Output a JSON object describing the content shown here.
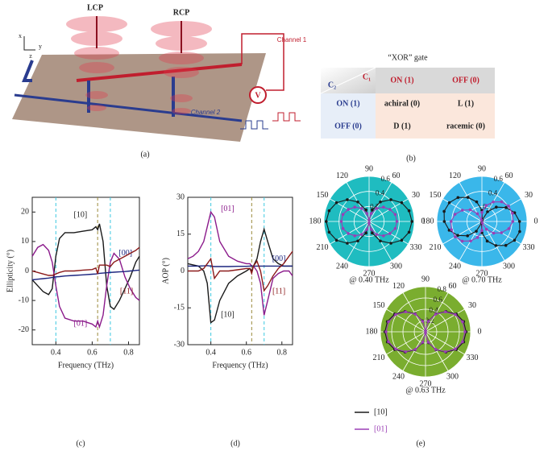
{
  "panel_a": {
    "lcp": "LCP",
    "rcp": "RCP",
    "channel_1": "Channel 1",
    "channel_2": "Channel 2",
    "meter": "V",
    "axis_x": "x",
    "axis_y": "y",
    "axis_z": "z"
  },
  "panel_b": {
    "title": "“XOR” gate",
    "c1": "C₁",
    "c2": "C₂",
    "columns": [
      "ON (1)",
      "OFF (0)"
    ],
    "rows": [
      {
        "label": "ON (1)",
        "cells": [
          "achiral (0)",
          "L (1)"
        ]
      },
      {
        "label": "OFF (0)",
        "cells": [
          "D (1)",
          "racemic (0)"
        ]
      }
    ]
  },
  "captions": {
    "a": "(a)",
    "b": "(b)",
    "c": "(c)",
    "d": "(d)",
    "e": "(e)"
  },
  "chart_data": [
    {
      "type": "line",
      "x_label": "Frequency (THz)",
      "y_label": "Ellipticity (°)",
      "xlim": [
        0.27,
        0.86
      ],
      "ylim": [
        -25,
        25
      ],
      "xticks": [
        0.4,
        0.6,
        0.8
      ],
      "yticks": [
        -20,
        -10,
        0,
        10,
        20
      ],
      "vlines": [
        {
          "x": 0.4,
          "color": "#3cc8e0"
        },
        {
          "x": 0.63,
          "color": "#9a8a3a"
        },
        {
          "x": 0.7,
          "color": "#3cc8e0"
        }
      ],
      "x": [
        0.27,
        0.3,
        0.33,
        0.36,
        0.38,
        0.4,
        0.42,
        0.45,
        0.5,
        0.55,
        0.6,
        0.62,
        0.63,
        0.64,
        0.66,
        0.68,
        0.7,
        0.72,
        0.75,
        0.78,
        0.81,
        0.84,
        0.86
      ],
      "series": [
        {
          "name": "[10]",
          "color": "#1a1a1a",
          "values": [
            -3,
            -5,
            -7,
            -8,
            -6,
            5,
            11,
            13,
            13,
            13.5,
            14,
            15,
            14,
            16,
            10,
            -5,
            -12,
            -13,
            -10,
            -6,
            -2,
            3,
            5
          ]
        },
        {
          "name": "[01]",
          "color": "#8b1a8b",
          "values": [
            5,
            8,
            9,
            7,
            3,
            -5,
            -12,
            -16,
            -17,
            -17,
            -18,
            -19,
            -17,
            -19,
            -15,
            -5,
            3,
            6,
            4,
            -2,
            -6,
            -9,
            -10
          ]
        },
        {
          "name": "[00]",
          "color": "#1a237e",
          "values": [
            -3,
            -2.8,
            -2.6,
            -2.4,
            -2.2,
            -2,
            -1.9,
            -1.7,
            -1.5,
            -1.3,
            -1.1,
            -1,
            -0.9,
            -0.8,
            -0.7,
            -0.6,
            -0.5,
            -0.4,
            -0.3,
            -0.2,
            0,
            0.2,
            0.3
          ]
        },
        {
          "name": "[11]",
          "color": "#8b1a1a",
          "values": [
            0,
            -0.5,
            -1,
            -1.5,
            -1.5,
            -1,
            -0.5,
            0,
            0,
            0.3,
            0.5,
            1,
            -1,
            2,
            2,
            2,
            1.5,
            3,
            4,
            5,
            6,
            7,
            8
          ]
        }
      ]
    },
    {
      "type": "line",
      "x_label": "Frequency (THz)",
      "y_label": "AOP (°)",
      "xlim": [
        0.27,
        0.86
      ],
      "ylim": [
        -30,
        30
      ],
      "xticks": [
        0.4,
        0.6,
        0.8
      ],
      "yticks": [
        -30,
        -15,
        0,
        15,
        30
      ],
      "vlines": [
        {
          "x": 0.4,
          "color": "#3cc8e0"
        },
        {
          "x": 0.63,
          "color": "#9a8a3a"
        },
        {
          "x": 0.7,
          "color": "#3cc8e0"
        }
      ],
      "x": [
        0.27,
        0.3,
        0.33,
        0.36,
        0.38,
        0.4,
        0.42,
        0.45,
        0.5,
        0.55,
        0.6,
        0.62,
        0.63,
        0.64,
        0.66,
        0.68,
        0.7,
        0.72,
        0.75,
        0.78,
        0.81,
        0.84,
        0.86
      ],
      "series": [
        {
          "name": "[10]",
          "color": "#1a1a1a",
          "values": [
            3,
            2.5,
            2,
            0,
            -5,
            -21,
            -20,
            -12,
            -5,
            -2,
            0,
            1,
            0,
            2,
            5,
            12,
            17,
            12,
            5,
            3,
            2,
            2,
            2
          ]
        },
        {
          "name": "[01]",
          "color": "#8b1a8b",
          "values": [
            5,
            6,
            8,
            12,
            18,
            24,
            22,
            12,
            6,
            4,
            3,
            3,
            2,
            2,
            0,
            -5,
            -18,
            -12,
            -3,
            -1,
            0,
            0,
            -2
          ]
        },
        {
          "name": "[00]",
          "color": "#1a237e",
          "values": [
            2,
            2,
            2,
            2.1,
            2.2,
            2,
            1.8,
            1.8,
            1.8,
            1.9,
            1.9,
            2,
            2,
            2,
            2,
            2,
            2,
            2,
            2,
            2,
            2,
            2,
            2
          ]
        },
        {
          "name": "[11]",
          "color": "#8b1a1a",
          "values": [
            0,
            0,
            0,
            1,
            3,
            5,
            -3,
            0,
            0,
            0.5,
            1,
            1,
            -1,
            2,
            4,
            0,
            -8,
            -6,
            -2,
            1,
            3,
            6,
            8
          ]
        }
      ]
    },
    {
      "type": "polar",
      "title": "@ 0.40 THz",
      "background": "#1fbcc0",
      "rlim": [
        0,
        0.6
      ],
      "rticks": [
        0.2,
        0.4,
        0.6
      ],
      "thetaticks": [
        0,
        30,
        60,
        90,
        120,
        150,
        180,
        210,
        240,
        270,
        300,
        330
      ],
      "theta": [
        0,
        15,
        30,
        45,
        60,
        75,
        90,
        105,
        120,
        135,
        150,
        165,
        180,
        195,
        210,
        225,
        240,
        255,
        270,
        285,
        300,
        315,
        330,
        345
      ],
      "series": [
        {
          "name": "[10]",
          "color": "#1a1a1a",
          "values": [
            0.57,
            0.55,
            0.5,
            0.41,
            0.3,
            0.16,
            0.02,
            0.16,
            0.3,
            0.41,
            0.5,
            0.55,
            0.57,
            0.55,
            0.5,
            0.41,
            0.3,
            0.16,
            0.02,
            0.16,
            0.3,
            0.41,
            0.5,
            0.55
          ]
        },
        {
          "name": "[01]",
          "color": "#9b3fb5",
          "values": [
            0.37,
            0.36,
            0.32,
            0.27,
            0.2,
            0.11,
            0.02,
            0.11,
            0.2,
            0.27,
            0.32,
            0.36,
            0.37,
            0.36,
            0.32,
            0.27,
            0.2,
            0.11,
            0.02,
            0.11,
            0.2,
            0.27,
            0.32,
            0.36
          ]
        }
      ]
    },
    {
      "type": "polar",
      "title": "@ 0.70 THz",
      "background": "#3ab7ea",
      "rlim": [
        0,
        0.6
      ],
      "rticks": [
        0.2,
        0.4,
        0.6
      ],
      "thetaticks": [
        0,
        30,
        60,
        90,
        120,
        150,
        180,
        210,
        240,
        270,
        300,
        330
      ],
      "theta": [
        0,
        15,
        30,
        45,
        60,
        75,
        90,
        105,
        120,
        135,
        150,
        165,
        180,
        195,
        210,
        225,
        240,
        255,
        270,
        285,
        300,
        315,
        330,
        345
      ],
      "series": [
        {
          "name": "[10]",
          "color": "#1a1a1a",
          "values": [
            0.5,
            0.45,
            0.37,
            0.27,
            0.15,
            0.02,
            0.15,
            0.27,
            0.37,
            0.45,
            0.5,
            0.52,
            0.5,
            0.45,
            0.37,
            0.27,
            0.15,
            0.02,
            0.15,
            0.27,
            0.37,
            0.45,
            0.5,
            0.52
          ]
        },
        {
          "name": "[01]",
          "color": "#9b3fb5",
          "values": [
            0.41,
            0.42,
            0.41,
            0.37,
            0.3,
            0.22,
            0.12,
            0.02,
            0.12,
            0.22,
            0.3,
            0.37,
            0.41,
            0.42,
            0.41,
            0.37,
            0.3,
            0.22,
            0.12,
            0.02,
            0.12,
            0.22,
            0.3,
            0.37
          ]
        }
      ]
    },
    {
      "type": "polar",
      "title": "@ 0.63 THz",
      "background": "#7aad2f",
      "rlim": [
        0,
        0.8
      ],
      "rticks": [
        0.2,
        0.4,
        0.6,
        0.8
      ],
      "thetaticks": [
        0,
        30,
        60,
        90,
        120,
        150,
        180,
        210,
        240,
        270,
        300,
        330
      ],
      "theta": [
        0,
        15,
        30,
        45,
        60,
        75,
        90,
        105,
        120,
        135,
        150,
        165,
        180,
        195,
        210,
        225,
        240,
        255,
        270,
        285,
        300,
        315,
        330,
        345
      ],
      "series": [
        {
          "name": "[10]",
          "color": "#1a1a1a",
          "values": [
            0.72,
            0.7,
            0.63,
            0.51,
            0.37,
            0.2,
            0.02,
            0.2,
            0.37,
            0.51,
            0.63,
            0.7,
            0.72,
            0.7,
            0.63,
            0.51,
            0.37,
            0.2,
            0.02,
            0.2,
            0.37,
            0.51,
            0.63,
            0.7
          ]
        },
        {
          "name": "[01]",
          "color": "#9b3fb5",
          "values": [
            0.7,
            0.68,
            0.61,
            0.5,
            0.36,
            0.19,
            0.02,
            0.19,
            0.36,
            0.5,
            0.61,
            0.68,
            0.7,
            0.68,
            0.61,
            0.5,
            0.36,
            0.19,
            0.02,
            0.19,
            0.36,
            0.5,
            0.61,
            0.68
          ]
        }
      ]
    }
  ]
}
